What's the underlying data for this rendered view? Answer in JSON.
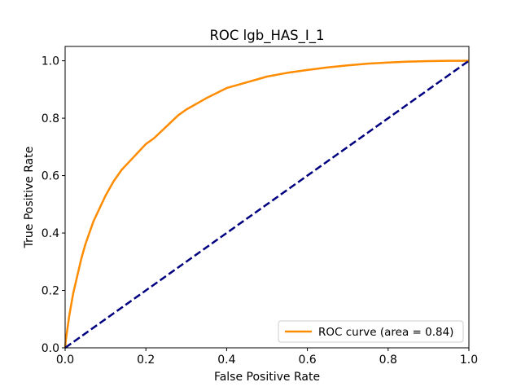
{
  "chart_data": {
    "type": "line",
    "title": "ROC lgb_HAS_I_1",
    "xlabel": "False Positive Rate",
    "ylabel": "True Positive Rate",
    "xlim": [
      0.0,
      1.0
    ],
    "ylim": [
      0.0,
      1.05
    ],
    "xticks": [
      "0.0",
      "0.2",
      "0.4",
      "0.6",
      "0.8",
      "1.0"
    ],
    "yticks": [
      "0.0",
      "0.2",
      "0.4",
      "0.6",
      "0.8",
      "1.0"
    ],
    "grid": false,
    "legend_position": "lower-right",
    "series": [
      {
        "name": "ROC curve (area = 0.84)",
        "color": "#ff8c00",
        "style": "solid",
        "x": [
          0.0,
          0.002,
          0.005,
          0.01,
          0.02,
          0.03,
          0.04,
          0.05,
          0.06,
          0.07,
          0.08,
          0.1,
          0.12,
          0.14,
          0.16,
          0.18,
          0.2,
          0.22,
          0.25,
          0.28,
          0.3,
          0.35,
          0.4,
          0.45,
          0.5,
          0.55,
          0.6,
          0.65,
          0.7,
          0.75,
          0.8,
          0.85,
          0.9,
          0.95,
          1.0
        ],
        "y": [
          0.0,
          0.03,
          0.06,
          0.11,
          0.19,
          0.25,
          0.31,
          0.36,
          0.4,
          0.44,
          0.47,
          0.53,
          0.58,
          0.62,
          0.65,
          0.68,
          0.71,
          0.73,
          0.77,
          0.81,
          0.83,
          0.87,
          0.905,
          0.925,
          0.945,
          0.958,
          0.968,
          0.977,
          0.984,
          0.99,
          0.994,
          0.997,
          0.999,
          1.0,
          1.0
        ]
      },
      {
        "name": "",
        "color": "#000080",
        "style": "dashed",
        "x": [
          0.0,
          1.0
        ],
        "y": [
          0.0,
          1.0
        ]
      }
    ]
  }
}
